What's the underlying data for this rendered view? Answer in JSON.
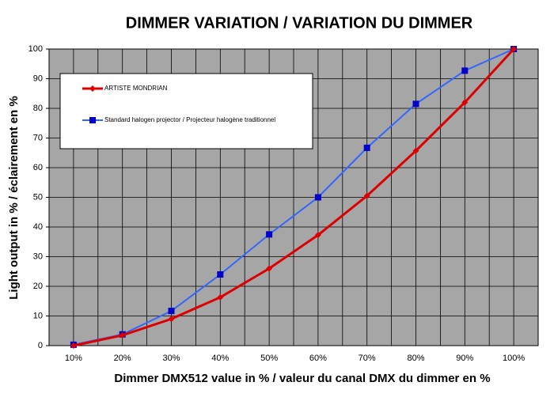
{
  "chart_data": {
    "type": "line",
    "title": "DIMMER VARIATION / VARIATION DU DIMMER",
    "x_label": "Dimmer DMX512 value in % / valeur du canal DMX du dimmer en %",
    "y_label": "Light output in % / éclairement en %",
    "categories": [
      "10%",
      "20%",
      "30%",
      "40%",
      "50%",
      "60%",
      "70%",
      "80%",
      "90%",
      "100%"
    ],
    "series": [
      {
        "name": "ARTISTE MONDRIAN",
        "color": "#dd0000",
        "values": [
          0,
          3.5,
          9,
          16.3,
          26,
          37.3,
          50.5,
          65.7,
          82,
          100
        ]
      },
      {
        "name": "Standard halogen projector / Projecteur halogène traditionnel",
        "color": "#3366ff",
        "values": [
          0.3,
          3.8,
          11.7,
          24,
          37.5,
          50,
          66.7,
          81.5,
          92.7,
          100
        ]
      }
    ],
    "ylim": [
      0,
      100
    ],
    "yticks": [
      0,
      10,
      20,
      30,
      40,
      50,
      60,
      70,
      80,
      90,
      100
    ],
    "grid": true,
    "legend": "upper-left"
  }
}
